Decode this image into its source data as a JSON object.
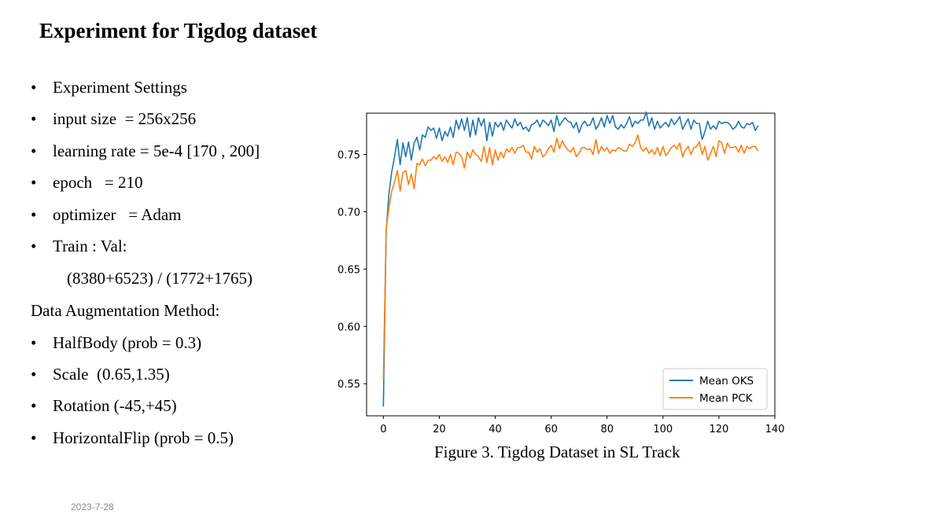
{
  "slide": {
    "title": "Experiment for Tigdog dataset",
    "date": "2023-7-28",
    "bullet_glyph": "•",
    "settings": {
      "items": [
        "Experiment Settings",
        "input size  = 256x256",
        "learning rate = 5e-4 [170 , 200]",
        "epoch   = 210",
        "optimizer   = Adam",
        "Train : Val:"
      ],
      "split_detail": "(8380+6523) / (1772+1765)"
    },
    "augmentation": {
      "heading": "Data Augmentation Method:",
      "items": [
        "HalfBody (prob = 0.3)",
        "Scale  (0.65,1.35)",
        "Rotation (-45,+45)",
        "HorizontalFlip (prob = 0.5)"
      ]
    },
    "figure_caption": "Figure 3. Tigdog Dataset in SL Track"
  },
  "chart_data": {
    "type": "line",
    "title": "",
    "xlabel": "",
    "ylabel": "",
    "xlim": [
      -6,
      140
    ],
    "ylim": [
      0.522,
      0.786
    ],
    "xticks": [
      "0",
      "20",
      "40",
      "60",
      "80",
      "100",
      "120",
      "140"
    ],
    "yticks": [
      "0.55",
      "0.60",
      "0.65",
      "0.70",
      "0.75"
    ],
    "xtick_values": [
      0,
      20,
      40,
      60,
      80,
      100,
      120,
      140
    ],
    "ytick_values": [
      0.55,
      0.6,
      0.65,
      0.7,
      0.75
    ],
    "grid": false,
    "legend_position": "bottom-right",
    "series": [
      {
        "name": "Mean OKS",
        "color": "#1f77b4",
        "x": [
          0,
          1,
          2,
          3,
          4,
          5,
          6,
          7,
          8,
          9,
          10,
          11,
          12,
          13,
          14,
          15,
          16,
          17,
          18,
          19,
          20,
          21,
          22,
          23,
          24,
          25,
          26,
          27,
          28,
          29,
          30,
          31,
          32,
          33,
          34,
          35,
          36,
          37,
          38,
          39,
          40,
          41,
          42,
          43,
          44,
          45,
          46,
          47,
          48,
          49,
          50,
          51,
          52,
          53,
          54,
          55,
          56,
          57,
          58,
          59,
          60,
          61,
          62,
          63,
          64,
          65,
          66,
          67,
          68,
          69,
          70,
          71,
          72,
          73,
          74,
          75,
          76,
          77,
          78,
          79,
          80,
          81,
          82,
          83,
          84,
          85,
          86,
          87,
          88,
          89,
          90,
          91,
          92,
          93,
          94,
          95,
          96,
          97,
          98,
          99,
          100,
          101,
          102,
          103,
          104,
          105,
          106,
          107,
          108,
          109,
          110,
          111,
          112,
          113,
          114,
          115,
          116,
          117,
          118,
          119,
          120,
          121,
          122,
          123,
          124,
          125,
          126,
          127,
          128,
          129,
          130,
          131,
          132,
          133,
          134
        ],
        "y": [
          0.53,
          0.683,
          0.716,
          0.735,
          0.748,
          0.763,
          0.741,
          0.76,
          0.748,
          0.761,
          0.745,
          0.76,
          0.765,
          0.754,
          0.767,
          0.765,
          0.774,
          0.771,
          0.773,
          0.764,
          0.773,
          0.762,
          0.77,
          0.766,
          0.774,
          0.765,
          0.78,
          0.772,
          0.781,
          0.771,
          0.782,
          0.765,
          0.78,
          0.767,
          0.782,
          0.775,
          0.781,
          0.762,
          0.778,
          0.766,
          0.778,
          0.774,
          0.778,
          0.771,
          0.78,
          0.776,
          0.773,
          0.781,
          0.775,
          0.778,
          0.772,
          0.774,
          0.77,
          0.776,
          0.777,
          0.78,
          0.774,
          0.78,
          0.778,
          0.775,
          0.78,
          0.77,
          0.784,
          0.775,
          0.779,
          0.782,
          0.779,
          0.778,
          0.773,
          0.778,
          0.769,
          0.776,
          0.779,
          0.775,
          0.776,
          0.782,
          0.772,
          0.776,
          0.782,
          0.774,
          0.784,
          0.777,
          0.784,
          0.774,
          0.772,
          0.776,
          0.773,
          0.777,
          0.783,
          0.774,
          0.779,
          0.777,
          0.78,
          0.78,
          0.787,
          0.775,
          0.782,
          0.772,
          0.779,
          0.773,
          0.776,
          0.778,
          0.774,
          0.781,
          0.776,
          0.779,
          0.783,
          0.772,
          0.777,
          0.781,
          0.772,
          0.78,
          0.777,
          0.777,
          0.763,
          0.77,
          0.779,
          0.772,
          0.775,
          0.772,
          0.779,
          0.777,
          0.778,
          0.778,
          0.776,
          0.772,
          0.774,
          0.779,
          0.774,
          0.773,
          0.777,
          0.776,
          0.778,
          0.771,
          0.775
        ]
      },
      {
        "name": "Mean PCK",
        "color": "#ff7f0e",
        "x": [
          0,
          1,
          2,
          3,
          4,
          5,
          6,
          7,
          8,
          9,
          10,
          11,
          12,
          13,
          14,
          15,
          16,
          17,
          18,
          19,
          20,
          21,
          22,
          23,
          24,
          25,
          26,
          27,
          28,
          29,
          30,
          31,
          32,
          33,
          34,
          35,
          36,
          37,
          38,
          39,
          40,
          41,
          42,
          43,
          44,
          45,
          46,
          47,
          48,
          49,
          50,
          51,
          52,
          53,
          54,
          55,
          56,
          57,
          58,
          59,
          60,
          61,
          62,
          63,
          64,
          65,
          66,
          67,
          68,
          69,
          70,
          71,
          72,
          73,
          74,
          75,
          76,
          77,
          78,
          79,
          80,
          81,
          82,
          83,
          84,
          85,
          86,
          87,
          88,
          89,
          90,
          91,
          92,
          93,
          94,
          95,
          96,
          97,
          98,
          99,
          100,
          101,
          102,
          103,
          104,
          105,
          106,
          107,
          108,
          109,
          110,
          111,
          112,
          113,
          114,
          115,
          116,
          117,
          118,
          119,
          120,
          121,
          122,
          123,
          124,
          125,
          126,
          127,
          128,
          129,
          130,
          131,
          132,
          133,
          134
        ],
        "y": [
          0.554,
          0.685,
          0.704,
          0.718,
          0.726,
          0.736,
          0.718,
          0.734,
          0.736,
          0.724,
          0.733,
          0.72,
          0.742,
          0.741,
          0.746,
          0.74,
          0.745,
          0.745,
          0.748,
          0.746,
          0.75,
          0.744,
          0.748,
          0.743,
          0.75,
          0.741,
          0.752,
          0.751,
          0.748,
          0.738,
          0.752,
          0.747,
          0.754,
          0.75,
          0.748,
          0.744,
          0.757,
          0.743,
          0.756,
          0.741,
          0.754,
          0.745,
          0.752,
          0.747,
          0.755,
          0.752,
          0.756,
          0.751,
          0.756,
          0.756,
          0.758,
          0.752,
          0.752,
          0.746,
          0.757,
          0.752,
          0.755,
          0.748,
          0.75,
          0.755,
          0.758,
          0.752,
          0.764,
          0.755,
          0.762,
          0.757,
          0.754,
          0.752,
          0.756,
          0.748,
          0.751,
          0.756,
          0.756,
          0.754,
          0.755,
          0.75,
          0.763,
          0.751,
          0.757,
          0.753,
          0.756,
          0.751,
          0.754,
          0.753,
          0.756,
          0.755,
          0.753,
          0.753,
          0.759,
          0.757,
          0.76,
          0.767,
          0.756,
          0.753,
          0.756,
          0.751,
          0.754,
          0.75,
          0.756,
          0.749,
          0.757,
          0.749,
          0.752,
          0.756,
          0.758,
          0.755,
          0.76,
          0.748,
          0.754,
          0.757,
          0.75,
          0.756,
          0.757,
          0.761,
          0.75,
          0.757,
          0.745,
          0.751,
          0.757,
          0.748,
          0.762,
          0.76,
          0.751,
          0.76,
          0.756,
          0.756,
          0.757,
          0.752,
          0.758,
          0.751,
          0.757,
          0.755,
          0.757,
          0.757,
          0.753
        ]
      }
    ]
  }
}
